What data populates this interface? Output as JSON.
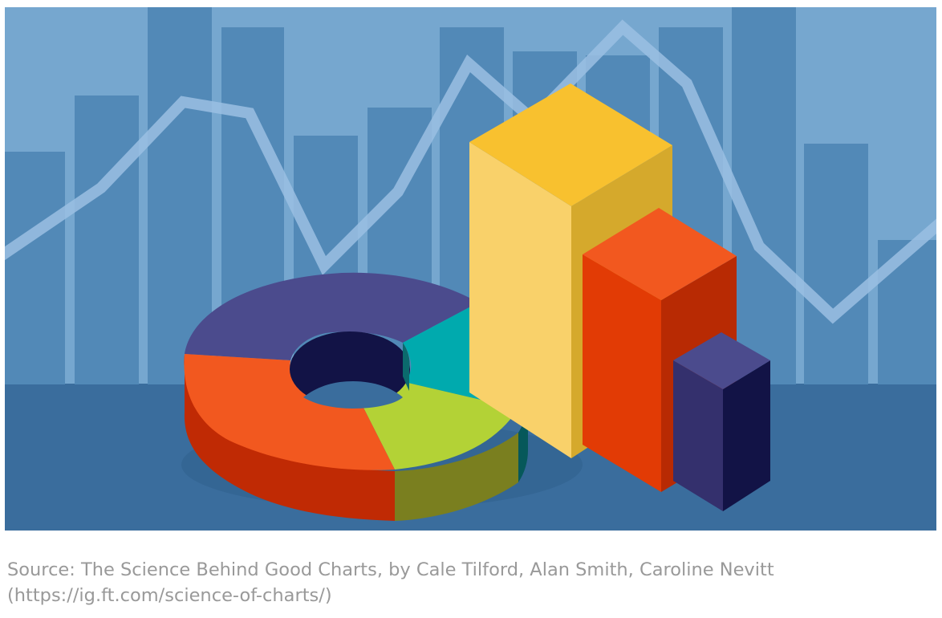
{
  "caption": {
    "line1": "Source: The Science Behind Good Charts, by Cale Tilford, Alan Smith, Caroline Nevitt",
    "line2": "(https://ig.ft.com/science-of-charts/)"
  },
  "illustration": {
    "colors": {
      "sky": "#76a7cf",
      "floor": "#3a6d9d",
      "background_bars": "#5289b7",
      "background_line": "#9bbfe3",
      "donut_purple": "#4b4b8d",
      "donut_teal": "#00aaae",
      "donut_green": "#b3d236",
      "donut_orange": "#f2581f",
      "bar_yellow": "#f8c12f",
      "bar_orange": "#f2581f",
      "bar_purple": "#433e85"
    },
    "icons": [
      "donut-chart-icon",
      "bar-chart-icon",
      "line-chart-icon"
    ]
  }
}
